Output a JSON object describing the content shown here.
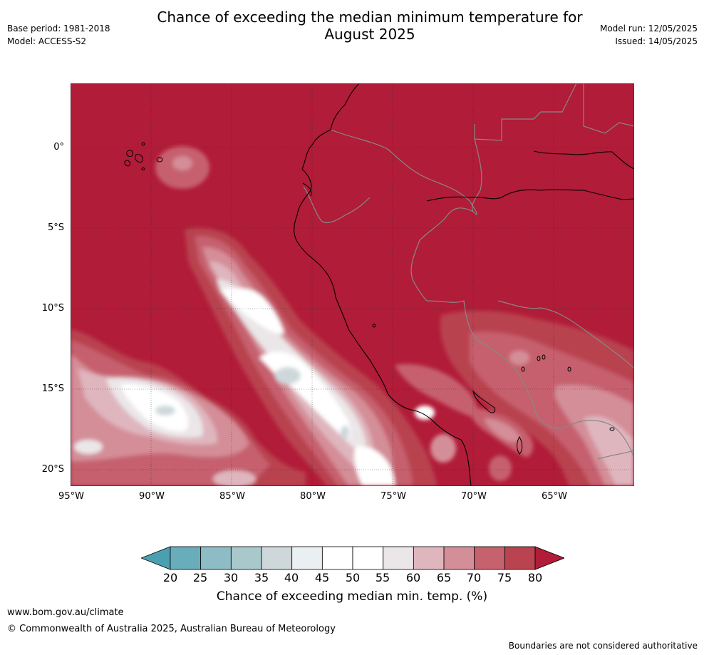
{
  "header": {
    "title_line1": "Chance of exceeding the median minimum temperature for",
    "title_line2": "August 2025",
    "base_period": "Base period: 1981-2018",
    "model": "Model: ACCESS-S2",
    "model_run": "Model run: 12/05/2025",
    "issued": "Issued: 14/05/2025"
  },
  "map": {
    "lat_labels": [
      "0°",
      "5°S",
      "10°S",
      "15°S",
      "20°S"
    ],
    "lon_labels": [
      "95°W",
      "90°W",
      "85°W",
      "80°W",
      "75°W",
      "70°W",
      "65°W"
    ],
    "extent": {
      "lon_min": -95,
      "lon_max": -60,
      "lat_min": -21,
      "lat_max": 4
    },
    "background_color": "#b11c38",
    "coastline_color": "#000000",
    "border_color": "#888888"
  },
  "colorbar": {
    "ticks": [
      "20",
      "25",
      "30",
      "35",
      "40",
      "45",
      "50",
      "55",
      "60",
      "65",
      "70",
      "75",
      "80"
    ],
    "colors": [
      "#4aa0b0",
      "#69adba",
      "#8ebcc5",
      "#a9c8cc",
      "#ced8db",
      "#eaeff1",
      "#ffffff",
      "#ffffff",
      "#ebe6e8",
      "#dfb6be",
      "#d48e98",
      "#c6616e",
      "#b9434f",
      "#b11c38"
    ],
    "label": "Chance of exceeding median min. temp. (%)"
  },
  "footer": {
    "url": "www.bom.gov.au/climate",
    "copyright": "© Commonwealth of Australia 2025, Australian Bureau of Meteorology",
    "disclaimer": "Boundaries are not considered authoritative"
  }
}
